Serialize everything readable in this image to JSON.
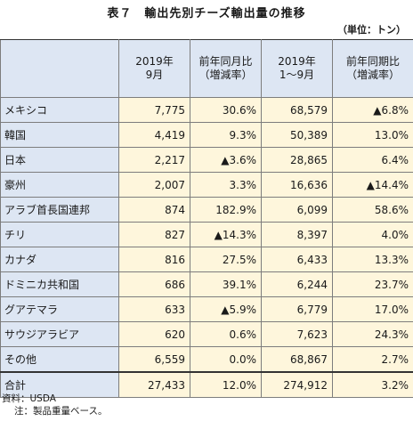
{
  "title": "表７　輸出先別チーズ輸出量の推移",
  "unit": "（単位：トン）",
  "headers": {
    "c2": [
      "2019年",
      "9月"
    ],
    "c3": [
      "前年同月比",
      "（増減率）"
    ],
    "c4": [
      "2019年",
      "1～9月"
    ],
    "c5": [
      "前年同期比",
      "（増減率）"
    ]
  },
  "rows": [
    {
      "name": "メキシコ",
      "v1": "7,775",
      "r1": "30.6%",
      "v2": "68,579",
      "r2": "▲6.8%"
    },
    {
      "name": "韓国",
      "v1": "4,419",
      "r1": "9.3%",
      "v2": "50,389",
      "r2": "13.0%"
    },
    {
      "name": "日本",
      "v1": "2,217",
      "r1": "▲3.6%",
      "v2": "28,865",
      "r2": "6.4%"
    },
    {
      "name": "豪州",
      "v1": "2,007",
      "r1": "3.3%",
      "v2": "16,636",
      "r2": "▲14.4%"
    },
    {
      "name": "アラブ首長国連邦",
      "v1": "874",
      "r1": "182.9%",
      "v2": "6,099",
      "r2": "58.6%"
    },
    {
      "name": "チリ",
      "v1": "827",
      "r1": "▲14.3%",
      "v2": "8,397",
      "r2": "4.0%"
    },
    {
      "name": "カナダ",
      "v1": "816",
      "r1": "27.5%",
      "v2": "6,433",
      "r2": "13.3%"
    },
    {
      "name": "ドミニカ共和国",
      "v1": "686",
      "r1": "39.1%",
      "v2": "6,244",
      "r2": "23.7%"
    },
    {
      "name": "グアテマラ",
      "v1": "633",
      "r1": "▲5.9%",
      "v2": "6,779",
      "r2": "17.0%"
    },
    {
      "name": "サウジアラビア",
      "v1": "620",
      "r1": "0.6%",
      "v2": "7,623",
      "r2": "24.3%"
    },
    {
      "name": "その他",
      "v1": "6,559",
      "r1": "0.0%",
      "v2": "68,867",
      "r2": "2.7%"
    }
  ],
  "total": {
    "name": "合計",
    "v1": "27,433",
    "r1": "12.0%",
    "v2": "274,912",
    "r2": "3.2%"
  },
  "notes": [
    "資料：USDA",
    "注：製品重量ベース。"
  ]
}
